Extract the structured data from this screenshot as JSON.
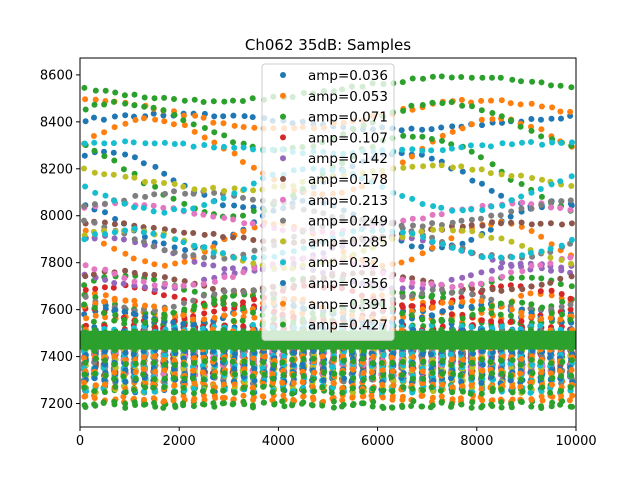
{
  "chart_data": {
    "type": "scatter",
    "title": "Ch062 35dB: Samples",
    "xlabel": "",
    "ylabel": "",
    "xlim": [
      0,
      10000
    ],
    "ylim": [
      7100,
      8672
    ],
    "xticks": [
      0,
      2000,
      4000,
      6000,
      8000,
      10000
    ],
    "xtick_labels": [
      "0",
      "2000",
      "4000",
      "6000",
      "8000",
      "10000"
    ],
    "yticks": [
      7200,
      7400,
      7600,
      7800,
      8000,
      8200,
      8400,
      8600
    ],
    "ytick_labels": [
      "7200",
      "7400",
      "7600",
      "7800",
      "8000",
      "8200",
      "8400",
      "8600"
    ],
    "grid": false,
    "legend_position": "upper-center",
    "x_sample_step": 200,
    "series": [
      {
        "name": "amp=0.036",
        "color": "#1f77b4",
        "tracks": [
          {
            "base": 8400,
            "amp": 30,
            "period": 9000,
            "phase": 0.2
          },
          {
            "base": 8150,
            "amp": 120,
            "period": 6000,
            "phase": 1.1
          },
          {
            "base": 7960,
            "amp": 100,
            "period": 5000,
            "phase": 2.0
          },
          {
            "base": 7560,
            "amp": 40,
            "period": 3000,
            "phase": 0.5
          }
        ],
        "stack": {
          "min": 7260,
          "max": 7520
        }
      },
      {
        "name": "amp=0.053",
        "color": "#ff7f0e",
        "tracks": [
          {
            "base": 8430,
            "amp": 60,
            "period": 8000,
            "phase": 1.5
          },
          {
            "base": 8250,
            "amp": 160,
            "period": 7000,
            "phase": 0.3
          },
          {
            "base": 7880,
            "amp": 90,
            "period": 4500,
            "phase": 2.4
          },
          {
            "base": 7620,
            "amp": 50,
            "period": 3000,
            "phase": 1.0
          }
        ],
        "stack": {
          "min": 7220,
          "max": 7560
        }
      },
      {
        "name": "amp=0.071",
        "color": "#2ca02c",
        "tracks": [
          {
            "base": 8540,
            "amp": 50,
            "period": 10000,
            "phase": 3.0
          },
          {
            "base": 8380,
            "amp": 100,
            "period": 6500,
            "phase": 0.8
          },
          {
            "base": 8170,
            "amp": 170,
            "period": 7500,
            "phase": 2.2
          },
          {
            "base": 7700,
            "amp": 40,
            "period": 4000,
            "phase": 0.1
          },
          {
            "base": 7620,
            "amp": 40,
            "period": 3500,
            "phase": 1.8
          }
        ],
        "stack": {
          "min": 7195,
          "max": 7540
        }
      },
      {
        "name": "amp=0.107",
        "color": "#d62728",
        "tracks": [
          {
            "base": 7660,
            "amp": 40,
            "period": 4000,
            "phase": 0.4
          },
          {
            "base": 7580,
            "amp": 30,
            "period": 3500,
            "phase": 2.0
          }
        ],
        "stack": {
          "min": 7400,
          "max": 7520
        }
      },
      {
        "name": "amp=0.142",
        "color": "#9467bd",
        "tracks": [
          {
            "base": 7840,
            "amp": 70,
            "period": 6000,
            "phase": 1.2
          },
          {
            "base": 7740,
            "amp": 50,
            "period": 5000,
            "phase": 2.8
          }
        ],
        "stack": {
          "min": 7360,
          "max": 7480
        }
      },
      {
        "name": "amp=0.178",
        "color": "#8c564b",
        "tracks": [
          {
            "base": 7930,
            "amp": 40,
            "period": 9000,
            "phase": 1.6
          },
          {
            "base": 7720,
            "amp": 40,
            "period": 5000,
            "phase": 0.6
          }
        ],
        "stack": {
          "min": 7320,
          "max": 7460
        }
      },
      {
        "name": "amp=0.213",
        "color": "#e377c2",
        "tracks": [
          {
            "base": 7990,
            "amp": 60,
            "period": 8000,
            "phase": 0.9
          },
          {
            "base": 7760,
            "amp": 60,
            "period": 5500,
            "phase": 2.5
          }
        ],
        "stack": {
          "min": 7330,
          "max": 7440
        }
      },
      {
        "name": "amp=0.249",
        "color": "#7f7f7f",
        "tracks": [
          {
            "base": 8030,
            "amp": 70,
            "period": 9000,
            "phase": 0.0
          },
          {
            "base": 7900,
            "amp": 80,
            "period": 6000,
            "phase": 1.9
          },
          {
            "base": 7640,
            "amp": 40,
            "period": 4000,
            "phase": 2.7
          }
        ],
        "stack": {
          "min": 7300,
          "max": 7500
        }
      },
      {
        "name": "amp=0.285",
        "color": "#bcbd22",
        "tracks": [
          {
            "base": 8160,
            "amp": 50,
            "period": 8000,
            "phase": 2.3
          },
          {
            "base": 7860,
            "amp": 80,
            "period": 6500,
            "phase": 0.7
          }
        ],
        "stack": {
          "min": 7260,
          "max": 7480
        }
      },
      {
        "name": "amp=0.32",
        "color": "#17becf",
        "tracks": [
          {
            "base": 8290,
            "amp": 20,
            "period": 9000,
            "phase": 1.0
          },
          {
            "base": 8110,
            "amp": 90,
            "period": 6000,
            "phase": 2.9
          },
          {
            "base": 7880,
            "amp": 60,
            "period": 5000,
            "phase": 0.3
          }
        ],
        "stack": {
          "min": 7260,
          "max": 7520
        }
      },
      {
        "name": "amp=0.356",
        "color": "#1f77b4",
        "tracks": [
          {
            "base": 7580,
            "amp": 40,
            "period": 4000,
            "phase": 1.4
          }
        ],
        "stack": {
          "min": 7300,
          "max": 7500
        }
      },
      {
        "name": "amp=0.391",
        "color": "#ff7f0e",
        "tracks": [
          {
            "base": 7600,
            "amp": 40,
            "period": 3500,
            "phase": 0.2
          }
        ],
        "stack": {
          "min": 7220,
          "max": 7500
        }
      },
      {
        "name": "amp=0.427",
        "color": "#2ca02c",
        "tracks": [
          {
            "base": 7470,
            "amp": 8,
            "period": 2000,
            "phase": 0.0
          },
          {
            "base": 7590,
            "amp": 40,
            "period": 3000,
            "phase": 2.1
          }
        ],
        "stack": {
          "min": 7195,
          "max": 7500
        }
      }
    ]
  }
}
